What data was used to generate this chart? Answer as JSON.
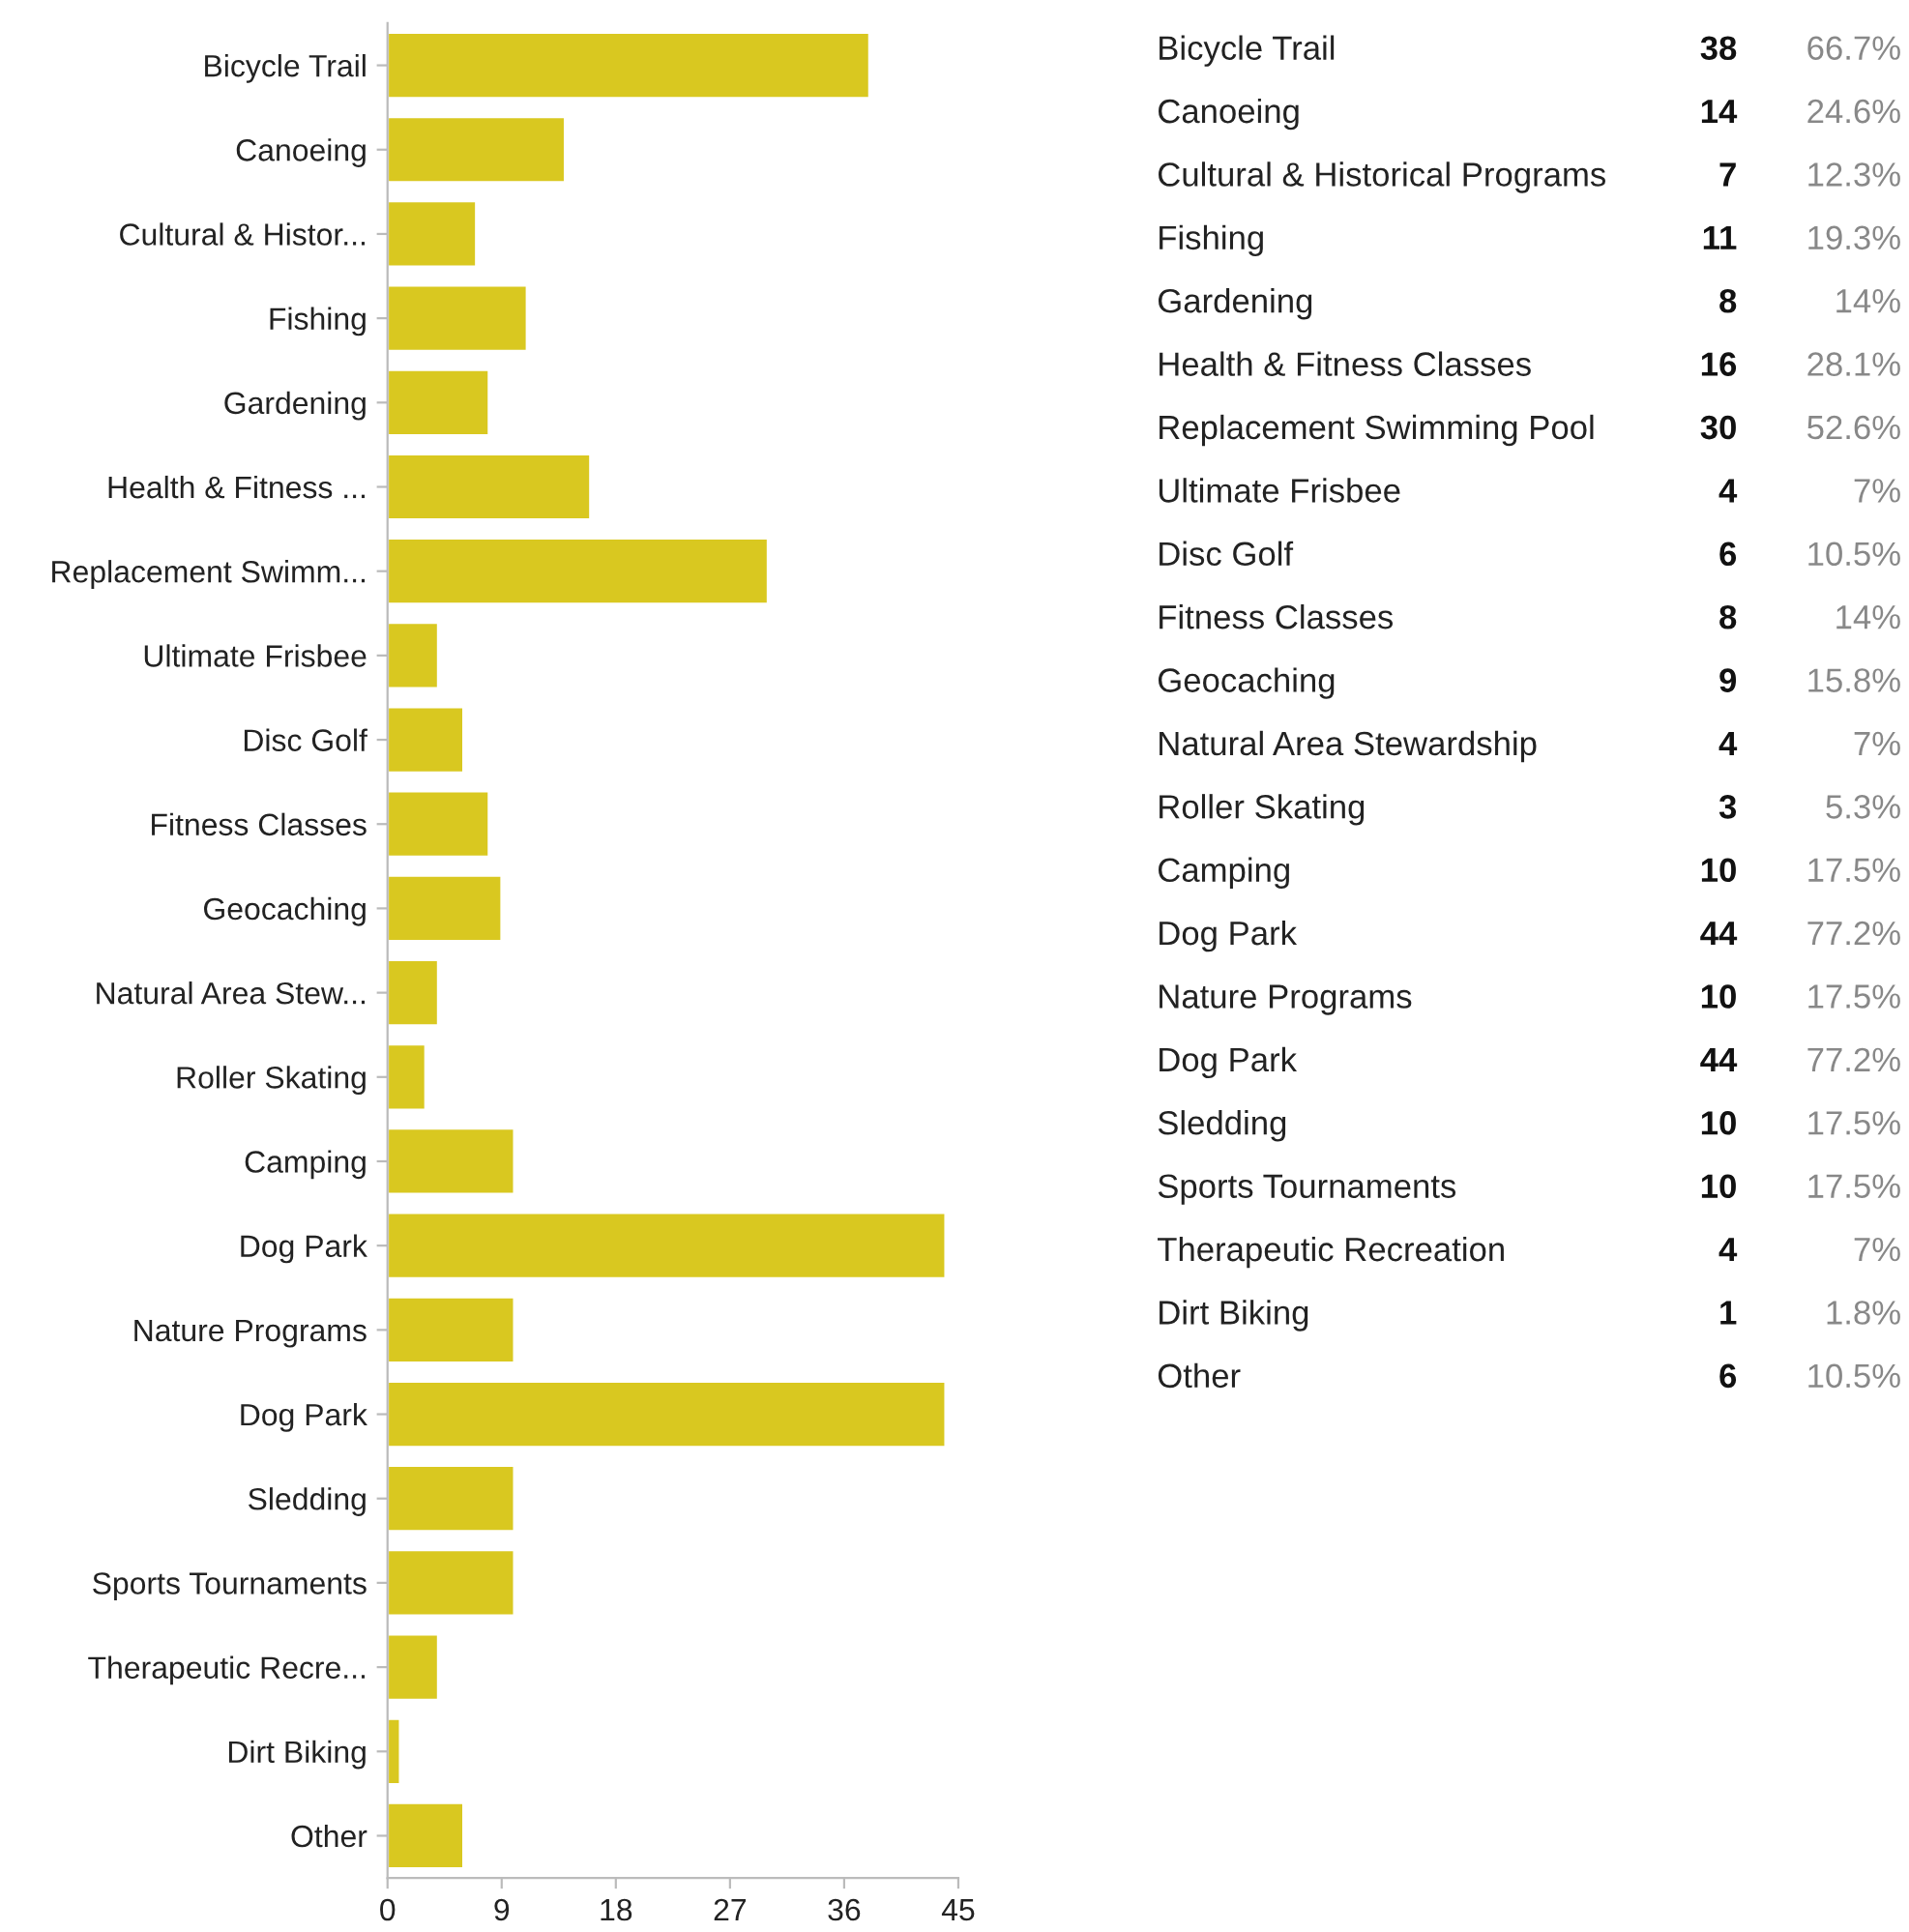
{
  "chart_data": [
    {
      "type": "bar",
      "orientation": "horizontal",
      "color": "#d9c820",
      "categories": [
        "Bicycle Trail",
        "Canoeing",
        "Cultural & Histor...",
        "Fishing",
        "Gardening",
        "Health & Fitness ...",
        "Replacement Swimm...",
        "Ultimate Frisbee",
        "Disc Golf",
        "Fitness Classes",
        "Geocaching",
        "Natural Area Stew...",
        "Roller Skating",
        "Camping",
        "Dog Park",
        "Nature Programs",
        "Dog Park",
        "Sledding",
        "Sports Tournaments",
        "Therapeutic Recre...",
        "Dirt Biking",
        "Other"
      ],
      "values": [
        38,
        14,
        7,
        11,
        8,
        16,
        30,
        4,
        6,
        8,
        9,
        4,
        3,
        10,
        44,
        10,
        44,
        10,
        10,
        4,
        1,
        6
      ],
      "xlim": [
        0,
        45
      ],
      "xticks": [
        0,
        9,
        18,
        27,
        36,
        45
      ],
      "grid": false,
      "legend": false
    },
    {
      "type": "other",
      "annotations": [
        "Bicycle Trail",
        "38",
        "66.7%",
        "Canoeing",
        "14",
        "24.6%",
        "Cultural & Historical Programs",
        "7",
        "12.3%",
        "Fishing",
        "11",
        "19.3%",
        "Gardening",
        "8",
        "14%",
        "Health & Fitness Classes",
        "16",
        "28.1%",
        "Replacement Swimming Pool",
        "30",
        "52.6%",
        "Ultimate Frisbee",
        "4",
        "7%",
        "Disc Golf",
        "6",
        "10.5%",
        "Fitness Classes",
        "8",
        "14%",
        "Geocaching",
        "9",
        "15.8%",
        "Natural Area Stewardship",
        "4",
        "7%",
        "Roller Skating",
        "3",
        "5.3%",
        "Camping",
        "10",
        "17.5%",
        "Dog Park",
        "44",
        "77.2%",
        "Nature Programs",
        "10",
        "17.5%",
        "Dog Park",
        "44",
        "77.2%",
        "Sledding",
        "10",
        "17.5%",
        "Sports Tournaments",
        "10",
        "17.5%",
        "Therapeutic Recreation",
        "4",
        "7%",
        "Dirt Biking",
        "1",
        "1.8%",
        "Other",
        "6",
        "10.5%"
      ]
    }
  ]
}
